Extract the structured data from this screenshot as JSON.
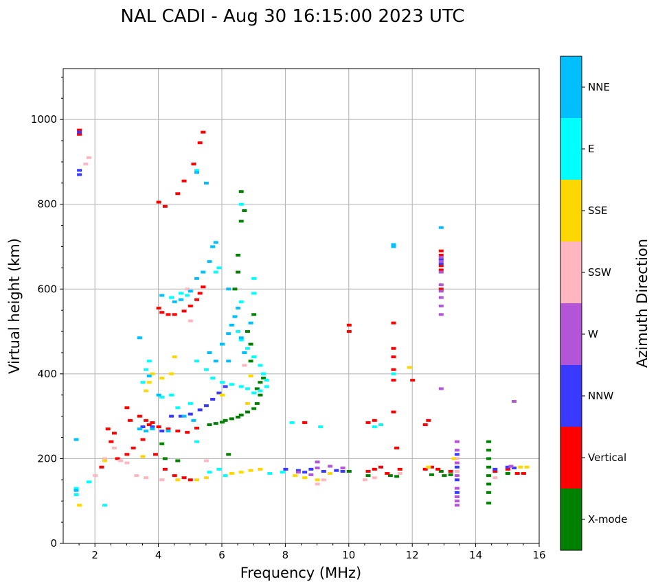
{
  "chart_data": {
    "type": "scatter",
    "title": "NAL CADI - Aug 30 16:15:00 2023 UTC",
    "xlabel": "Frequency (MHz)",
    "ylabel": "Virtual height (km)",
    "xlim": [
      1.0,
      16.0
    ],
    "ylim": [
      0,
      1120
    ],
    "xticks": [
      2,
      4,
      6,
      8,
      10,
      12,
      14,
      16
    ],
    "yticks": [
      0,
      200,
      400,
      600,
      800,
      1000
    ],
    "grid": true,
    "colorbar": {
      "label": "Azimuth Direction",
      "categories": [
        {
          "name": "X-mode",
          "color": "#008000"
        },
        {
          "name": "Vertical",
          "color": "#ff0000"
        },
        {
          "name": "NNW",
          "color": "#3a3aff"
        },
        {
          "name": "W",
          "color": "#b454d6"
        },
        {
          "name": "SSW",
          "color": "#ffb6c1"
        },
        {
          "name": "SSE",
          "color": "#ffd700"
        },
        {
          "name": "E",
          "color": "#00ffff"
        },
        {
          "name": "NNE",
          "color": "#00bfff"
        }
      ]
    },
    "series": [
      {
        "name": "X-mode",
        "points": [
          [
            5.6,
            280
          ],
          [
            5.8,
            283
          ],
          [
            6.0,
            286
          ],
          [
            6.1,
            290
          ],
          [
            6.3,
            294
          ],
          [
            6.5,
            298
          ],
          [
            6.6,
            303
          ],
          [
            6.8,
            310
          ],
          [
            7.0,
            318
          ],
          [
            7.1,
            330
          ],
          [
            7.2,
            350
          ],
          [
            7.1,
            365
          ],
          [
            7.2,
            380
          ],
          [
            7.3,
            390
          ],
          [
            6.9,
            430
          ],
          [
            6.9,
            470
          ],
          [
            6.8,
            500
          ],
          [
            6.4,
            600
          ],
          [
            6.5,
            640
          ],
          [
            6.5,
            680
          ],
          [
            6.6,
            760
          ],
          [
            6.7,
            785
          ],
          [
            6.6,
            830
          ],
          [
            7.0,
            540
          ],
          [
            6.2,
            210
          ],
          [
            4.2,
            200
          ],
          [
            4.6,
            195
          ],
          [
            4.1,
            235
          ],
          [
            10.0,
            170
          ],
          [
            10.6,
            160
          ],
          [
            11.3,
            160
          ],
          [
            11.5,
            158
          ],
          [
            12.6,
            162
          ],
          [
            12.9,
            170
          ],
          [
            13.0,
            160
          ],
          [
            13.2,
            162
          ],
          [
            14.4,
            95
          ],
          [
            14.4,
            120
          ],
          [
            14.4,
            140
          ],
          [
            14.4,
            160
          ],
          [
            14.4,
            180
          ],
          [
            14.4,
            200
          ],
          [
            14.4,
            220
          ],
          [
            14.4,
            240
          ],
          [
            15.0,
            165
          ]
        ]
      },
      {
        "name": "Vertical",
        "points": [
          [
            4.0,
            555
          ],
          [
            4.1,
            545
          ],
          [
            4.3,
            540
          ],
          [
            4.5,
            540
          ],
          [
            4.8,
            548
          ],
          [
            5.0,
            560
          ],
          [
            5.2,
            575
          ],
          [
            5.3,
            590
          ],
          [
            5.4,
            605
          ],
          [
            4.0,
            805
          ],
          [
            4.2,
            795
          ],
          [
            4.6,
            825
          ],
          [
            4.8,
            855
          ],
          [
            5.1,
            895
          ],
          [
            5.3,
            945
          ],
          [
            5.4,
            970
          ],
          [
            1.5,
            965
          ],
          [
            1.5,
            975
          ],
          [
            3.4,
            300
          ],
          [
            3.6,
            290
          ],
          [
            3.8,
            285
          ],
          [
            4.0,
            275
          ],
          [
            4.3,
            270
          ],
          [
            4.6,
            265
          ],
          [
            4.9,
            262
          ],
          [
            5.2,
            272
          ],
          [
            3.5,
            245
          ],
          [
            3.2,
            225
          ],
          [
            3.0,
            210
          ],
          [
            2.7,
            200
          ],
          [
            2.5,
            240
          ],
          [
            2.4,
            270
          ],
          [
            3.9,
            210
          ],
          [
            4.5,
            160
          ],
          [
            4.8,
            155
          ],
          [
            3.7,
            280
          ],
          [
            8.6,
            285
          ],
          [
            10.6,
            285
          ],
          [
            10.8,
            290
          ],
          [
            11.4,
            310
          ],
          [
            11.4,
            385
          ],
          [
            11.4,
            410
          ],
          [
            11.4,
            440
          ],
          [
            11.4,
            460
          ],
          [
            11.5,
            225
          ],
          [
            12.0,
            385
          ],
          [
            12.4,
            280
          ],
          [
            12.5,
            290
          ],
          [
            10.0,
            500
          ],
          [
            10.0,
            515
          ],
          [
            11.4,
            520
          ],
          [
            12.9,
            645
          ],
          [
            12.9,
            655
          ],
          [
            12.9,
            680
          ],
          [
            12.9,
            690
          ],
          [
            12.9,
            600
          ],
          [
            10.6,
            170
          ],
          [
            10.8,
            175
          ],
          [
            11.0,
            180
          ],
          [
            11.2,
            165
          ],
          [
            11.6,
            175
          ],
          [
            12.4,
            175
          ],
          [
            12.6,
            180
          ],
          [
            12.8,
            175
          ],
          [
            13.2,
            170
          ],
          [
            14.6,
            170
          ],
          [
            15.0,
            175
          ],
          [
            15.3,
            165
          ],
          [
            15.5,
            165
          ],
          [
            5.0,
            150
          ],
          [
            4.2,
            175
          ],
          [
            3.1,
            290
          ],
          [
            3.0,
            320
          ],
          [
            2.2,
            180
          ],
          [
            2.6,
            260
          ]
        ]
      },
      {
        "name": "NNW",
        "points": [
          [
            4.4,
            300
          ],
          [
            4.7,
            300
          ],
          [
            5.0,
            305
          ],
          [
            5.3,
            315
          ],
          [
            5.5,
            325
          ],
          [
            5.7,
            340
          ],
          [
            5.9,
            355
          ],
          [
            6.1,
            370
          ],
          [
            3.5,
            275
          ],
          [
            3.8,
            275
          ],
          [
            4.1,
            265
          ],
          [
            8.0,
            175
          ],
          [
            8.4,
            172
          ],
          [
            8.8,
            175
          ],
          [
            9.2,
            170
          ],
          [
            9.6,
            172
          ],
          [
            9.8,
            170
          ],
          [
            8.6,
            168
          ],
          [
            12.9,
            660
          ],
          [
            12.9,
            670
          ],
          [
            13.4,
            120
          ],
          [
            13.4,
            150
          ],
          [
            13.4,
            180
          ],
          [
            13.4,
            210
          ],
          [
            14.6,
            175
          ],
          [
            15.0,
            180
          ],
          [
            15.2,
            178
          ],
          [
            1.5,
            870
          ],
          [
            1.5,
            880
          ],
          [
            1.5,
            970
          ]
        ]
      },
      {
        "name": "W",
        "points": [
          [
            12.9,
            540
          ],
          [
            12.9,
            560
          ],
          [
            12.9,
            580
          ],
          [
            12.9,
            595
          ],
          [
            12.9,
            610
          ],
          [
            12.9,
            640
          ],
          [
            12.9,
            665
          ],
          [
            12.9,
            675
          ],
          [
            12.9,
            365
          ],
          [
            13.4,
            90
          ],
          [
            13.4,
            100
          ],
          [
            13.4,
            110
          ],
          [
            13.4,
            130
          ],
          [
            13.4,
            160
          ],
          [
            13.4,
            190
          ],
          [
            13.4,
            220
          ],
          [
            13.4,
            240
          ],
          [
            15.2,
            335
          ],
          [
            15.1,
            182
          ],
          [
            8.4,
            168
          ],
          [
            8.8,
            162
          ],
          [
            9.0,
            178
          ],
          [
            9.0,
            192
          ],
          [
            9.4,
            182
          ],
          [
            9.8,
            178
          ]
        ]
      },
      {
        "name": "SSW",
        "points": [
          [
            1.7,
            895
          ],
          [
            1.8,
            910
          ],
          [
            2.0,
            160
          ],
          [
            2.3,
            200
          ],
          [
            2.6,
            225
          ],
          [
            2.8,
            195
          ],
          [
            3.0,
            190
          ],
          [
            3.3,
            160
          ],
          [
            3.6,
            155
          ],
          [
            4.1,
            150
          ],
          [
            5.5,
            195
          ],
          [
            9.0,
            140
          ],
          [
            9.2,
            150
          ],
          [
            10.5,
            150
          ],
          [
            10.8,
            155
          ],
          [
            11.6,
            165
          ],
          [
            13.4,
            170
          ],
          [
            13.4,
            200
          ],
          [
            14.6,
            155
          ],
          [
            5.0,
            525
          ],
          [
            4.9,
            600
          ],
          [
            6.7,
            420
          ]
        ]
      },
      {
        "name": "SSE",
        "points": [
          [
            1.5,
            90
          ],
          [
            2.3,
            195
          ],
          [
            3.6,
            360
          ],
          [
            3.7,
            380
          ],
          [
            3.8,
            400
          ],
          [
            4.1,
            390
          ],
          [
            4.5,
            440
          ],
          [
            4.4,
            400
          ],
          [
            3.5,
            205
          ],
          [
            4.6,
            150
          ],
          [
            5.2,
            150
          ],
          [
            5.5,
            155
          ],
          [
            6.3,
            165
          ],
          [
            6.6,
            168
          ],
          [
            6.9,
            172
          ],
          [
            7.2,
            175
          ],
          [
            8.3,
            160
          ],
          [
            8.6,
            155
          ],
          [
            9.0,
            150
          ],
          [
            9.4,
            165
          ],
          [
            13.3,
            200
          ],
          [
            15.4,
            180
          ],
          [
            15.6,
            180
          ],
          [
            6.0,
            350
          ],
          [
            6.9,
            395
          ],
          [
            11.9,
            415
          ],
          [
            6.8,
            330
          ],
          [
            12.5,
            180
          ]
        ]
      },
      {
        "name": "E",
        "points": [
          [
            1.4,
            115
          ],
          [
            1.4,
            130
          ],
          [
            1.8,
            145
          ],
          [
            2.3,
            90
          ],
          [
            3.5,
            380
          ],
          [
            3.6,
            410
          ],
          [
            3.7,
            430
          ],
          [
            4.4,
            580
          ],
          [
            4.7,
            590
          ],
          [
            4.9,
            585
          ],
          [
            5.2,
            430
          ],
          [
            5.5,
            410
          ],
          [
            5.7,
            390
          ],
          [
            6.0,
            380
          ],
          [
            6.3,
            375
          ],
          [
            6.6,
            370
          ],
          [
            6.8,
            365
          ],
          [
            7.0,
            355
          ],
          [
            7.2,
            360
          ],
          [
            7.4,
            370
          ],
          [
            7.4,
            385
          ],
          [
            7.3,
            400
          ],
          [
            7.2,
            420
          ],
          [
            7.0,
            440
          ],
          [
            6.8,
            460
          ],
          [
            6.6,
            480
          ],
          [
            6.5,
            500
          ],
          [
            6.6,
            570
          ],
          [
            7.0,
            590
          ],
          [
            7.0,
            625
          ],
          [
            5.8,
            640
          ],
          [
            5.9,
            650
          ],
          [
            6.6,
            800
          ],
          [
            7.5,
            165
          ],
          [
            7.9,
            168
          ],
          [
            9.1,
            275
          ],
          [
            8.2,
            285
          ],
          [
            10.8,
            275
          ],
          [
            11.0,
            280
          ],
          [
            11.4,
            400
          ],
          [
            5.2,
            880
          ],
          [
            4.4,
            350
          ],
          [
            4.1,
            345
          ],
          [
            4.6,
            320
          ],
          [
            5.0,
            330
          ],
          [
            5.2,
            240
          ],
          [
            5.6,
            168
          ],
          [
            5.9,
            175
          ],
          [
            6.1,
            160
          ]
        ]
      },
      {
        "name": "NNE",
        "points": [
          [
            1.4,
            125
          ],
          [
            1.4,
            245
          ],
          [
            3.4,
            270
          ],
          [
            3.6,
            265
          ],
          [
            4.1,
            585
          ],
          [
            4.5,
            570
          ],
          [
            4.7,
            575
          ],
          [
            5.0,
            595
          ],
          [
            5.2,
            625
          ],
          [
            5.4,
            640
          ],
          [
            5.6,
            665
          ],
          [
            5.7,
            700
          ],
          [
            5.8,
            710
          ],
          [
            5.5,
            850
          ],
          [
            5.2,
            875
          ],
          [
            5.6,
            450
          ],
          [
            5.8,
            430
          ],
          [
            6.0,
            470
          ],
          [
            6.2,
            495
          ],
          [
            6.3,
            515
          ],
          [
            6.4,
            535
          ],
          [
            6.5,
            555
          ],
          [
            6.6,
            485
          ],
          [
            6.9,
            520
          ],
          [
            6.7,
            450
          ],
          [
            6.2,
            430
          ],
          [
            4.8,
            300
          ],
          [
            5.1,
            290
          ],
          [
            4.0,
            350
          ],
          [
            3.7,
            395
          ],
          [
            3.4,
            485
          ],
          [
            11.4,
            700
          ],
          [
            11.4,
            705
          ],
          [
            12.9,
            745
          ],
          [
            4.3,
            265
          ],
          [
            3.8,
            270
          ],
          [
            6.2,
            600
          ]
        ]
      }
    ]
  }
}
